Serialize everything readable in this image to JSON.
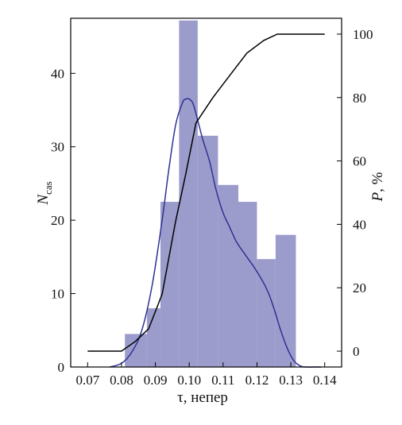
{
  "chart_data": {
    "type": "bar",
    "xlabel": "τ, непер",
    "ylabel_left": {
      "main": "N",
      "sub": "cas"
    },
    "ylabel_right": {
      "main": "P",
      "suffix": ", %"
    },
    "xlim": [
      0.065,
      0.145
    ],
    "ylim_left": [
      0,
      47.5
    ],
    "ylim_right": [
      -5,
      105
    ],
    "x_ticks": [
      {
        "value": 0.07,
        "label": "0.07"
      },
      {
        "value": 0.08,
        "label": "0.08"
      },
      {
        "value": 0.09,
        "label": "0.09"
      },
      {
        "value": 0.1,
        "label": "0.10"
      },
      {
        "value": 0.11,
        "label": "0.11"
      },
      {
        "value": 0.12,
        "label": "0.12"
      },
      {
        "value": 0.13,
        "label": "0.13"
      },
      {
        "value": 0.14,
        "label": "0.14"
      }
    ],
    "y_left_ticks": [
      {
        "value": 0,
        "label": "0"
      },
      {
        "value": 10,
        "label": "10"
      },
      {
        "value": 20,
        "label": "20"
      },
      {
        "value": 30,
        "label": "30"
      },
      {
        "value": 40,
        "label": "40"
      }
    ],
    "y_right_ticks": [
      {
        "value": 0,
        "label": "0"
      },
      {
        "value": 20,
        "label": "20"
      },
      {
        "value": 40,
        "label": "40"
      },
      {
        "value": 60,
        "label": "60"
      },
      {
        "value": 80,
        "label": "80"
      },
      {
        "value": 100,
        "label": "100"
      }
    ],
    "bar_color": "#9c9ccc",
    "bins": [
      {
        "x0": 0.081,
        "x1": 0.0875,
        "value": 4.5
      },
      {
        "x0": 0.0875,
        "x1": 0.0915,
        "value": 8.0
      },
      {
        "x0": 0.0915,
        "x1": 0.097,
        "value": 22.5
      },
      {
        "x0": 0.097,
        "x1": 0.1025,
        "value": 47.2
      },
      {
        "x0": 0.1025,
        "x1": 0.1085,
        "value": 31.5
      },
      {
        "x0": 0.1085,
        "x1": 0.1145,
        "value": 24.8
      },
      {
        "x0": 0.1145,
        "x1": 0.12,
        "value": 22.5
      },
      {
        "x0": 0.12,
        "x1": 0.1255,
        "value": 14.7
      },
      {
        "x0": 0.1255,
        "x1": 0.1315,
        "value": 18.0
      }
    ],
    "density_curve": {
      "color": "#2e3192",
      "x": [
        0.0765,
        0.08,
        0.083,
        0.086,
        0.089,
        0.092,
        0.094,
        0.096,
        0.098,
        0.099,
        0.1,
        0.101,
        0.102,
        0.104,
        0.106,
        0.108,
        0.11,
        0.112,
        0.114,
        0.117,
        0.12,
        0.123,
        0.125,
        0.127,
        0.129,
        0.131,
        0.133,
        0.135,
        0.137,
        0.139
      ],
      "y": [
        0,
        0.5,
        2,
        5,
        11,
        20,
        27,
        33,
        36,
        36.5,
        36.5,
        36,
        34.5,
        31,
        28,
        24,
        21,
        19,
        17,
        15,
        13,
        10.5,
        8,
        5,
        2.5,
        0.8,
        0.1,
        0,
        0,
        0
      ]
    },
    "cumulative_curve": {
      "color": "#000000",
      "x": [
        0.07,
        0.08,
        0.084,
        0.088,
        0.092,
        0.096,
        0.099,
        0.102,
        0.107,
        0.112,
        0.117,
        0.122,
        0.126,
        0.128,
        0.14
      ],
      "y": [
        0,
        0,
        3,
        7,
        18,
        41,
        56,
        72,
        80,
        87,
        94,
        98,
        100,
        100,
        100
      ]
    }
  }
}
